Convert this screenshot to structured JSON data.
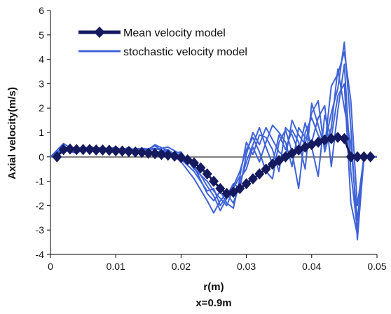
{
  "chart_data": {
    "type": "line",
    "title": "",
    "xlabel": "r(m)",
    "caption": "x=0.9m",
    "ylabel": "Axial velocity(m/s)",
    "xlim": [
      0,
      0.05
    ],
    "ylim": [
      -4,
      6
    ],
    "x_ticks": [
      "0",
      "0.01",
      "0.02",
      "0.03",
      "0.04",
      "0.05"
    ],
    "y_ticks": [
      "-4",
      "-3",
      "-2",
      "-1",
      "0",
      "1",
      "2",
      "3",
      "4",
      "5",
      "6"
    ],
    "grid": false,
    "legend_position": "top-left",
    "colors": {
      "mean": "#15195e",
      "stochastic": "#3f63d6"
    },
    "series": [
      {
        "name": "Mean velocity model",
        "marker": "diamond",
        "x": [
          0.001,
          0.002,
          0.003,
          0.004,
          0.005,
          0.006,
          0.007,
          0.008,
          0.009,
          0.01,
          0.011,
          0.012,
          0.013,
          0.014,
          0.015,
          0.016,
          0.017,
          0.018,
          0.019,
          0.02,
          0.021,
          0.022,
          0.023,
          0.024,
          0.025,
          0.026,
          0.027,
          0.028,
          0.029,
          0.03,
          0.031,
          0.032,
          0.033,
          0.034,
          0.035,
          0.036,
          0.037,
          0.038,
          0.039,
          0.04,
          0.041,
          0.042,
          0.043,
          0.044,
          0.045,
          0.046,
          0.047,
          0.048,
          0.049
        ],
        "values": [
          0.0,
          0.3,
          0.32,
          0.3,
          0.3,
          0.3,
          0.28,
          0.28,
          0.27,
          0.25,
          0.24,
          0.22,
          0.2,
          0.18,
          0.15,
          0.13,
          0.1,
          0.07,
          0.03,
          -0.03,
          -0.12,
          -0.25,
          -0.45,
          -0.7,
          -1.0,
          -1.3,
          -1.5,
          -1.45,
          -1.3,
          -1.1,
          -0.9,
          -0.7,
          -0.5,
          -0.3,
          -0.15,
          0.0,
          0.15,
          0.28,
          0.4,
          0.5,
          0.6,
          0.7,
          0.75,
          0.8,
          0.75,
          0.0,
          0.0,
          0.0,
          0.0
        ]
      },
      {
        "name": "stochastic velocity model",
        "x": [
          0.0,
          0.002,
          0.004,
          0.006,
          0.008,
          0.01,
          0.012,
          0.014,
          0.016,
          0.018,
          0.02,
          0.022,
          0.024,
          0.025,
          0.026,
          0.027,
          0.028,
          0.029,
          0.03,
          0.031,
          0.032,
          0.033,
          0.034,
          0.035,
          0.036,
          0.037,
          0.038,
          0.039,
          0.04,
          0.041,
          0.042,
          0.043,
          0.044,
          0.045,
          0.046,
          0.047,
          0.048,
          0.05
        ],
        "realizations": [
          [
            0.0,
            0.55,
            0.2,
            0.35,
            0.25,
            0.4,
            0.15,
            0.35,
            0.3,
            0.4,
            0.1,
            -0.3,
            -1.2,
            -1.6,
            -2.2,
            -1.7,
            -1.2,
            -0.6,
            0.3,
            0.8,
            0.2,
            -0.6,
            -0.9,
            0.6,
            1.1,
            0.2,
            -1.3,
            1.0,
            1.6,
            0.9,
            0.5,
            1.8,
            2.8,
            4.7,
            1.2,
            -3.4,
            0.0,
            0.0
          ],
          [
            0.0,
            0.25,
            0.4,
            0.2,
            0.35,
            0.15,
            0.4,
            0.1,
            0.5,
            0.25,
            -0.2,
            -0.9,
            -1.8,
            -2.3,
            -1.8,
            -1.5,
            -1.9,
            -1.1,
            -0.2,
            0.5,
            1.2,
            0.4,
            -0.3,
            0.9,
            0.3,
            1.1,
            0.6,
            -0.5,
            2.2,
            1.3,
            0.4,
            2.9,
            3.4,
            4.3,
            2.3,
            -2.0,
            0.0,
            0.0
          ],
          [
            0.0,
            0.3,
            0.15,
            0.45,
            0.2,
            0.3,
            0.25,
            0.2,
            0.45,
            0.1,
            0.2,
            -0.5,
            -1.0,
            -1.4,
            -1.7,
            -2.0,
            -1.3,
            -0.8,
            0.6,
            0.1,
            0.9,
            0.8,
            0.3,
            -0.6,
            1.2,
            0.9,
            0.2,
            1.4,
            0.4,
            -0.8,
            1.7,
            0.8,
            2.5,
            3.0,
            -1.9,
            -3.2,
            0.0,
            0.0
          ],
          [
            0.0,
            0.4,
            0.3,
            0.25,
            0.4,
            0.2,
            0.3,
            0.35,
            0.2,
            0.3,
            -0.1,
            -0.6,
            -1.4,
            -1.3,
            -2.0,
            -1.6,
            -1.1,
            -1.3,
            0.1,
            1.0,
            0.5,
            1.2,
            0.7,
            0.2,
            0.0,
            1.5,
            0.9,
            0.5,
            1.8,
            2.3,
            0.2,
            1.2,
            3.6,
            2.0,
            0.5,
            -2.6,
            0.0,
            0.0
          ],
          [
            0.0,
            0.2,
            0.35,
            0.3,
            0.3,
            0.35,
            0.2,
            0.3,
            0.35,
            0.2,
            0.05,
            -0.4,
            -1.5,
            -1.8,
            -1.4,
            -1.9,
            -2.1,
            -0.9,
            -0.5,
            0.4,
            -0.2,
            0.6,
            1.3,
            1.0,
            0.6,
            -0.4,
            1.2,
            0.8,
            0.6,
            1.6,
            2.1,
            -0.4,
            1.9,
            3.8,
            -0.6,
            -3.0,
            0.0,
            0.0
          ]
        ]
      }
    ]
  }
}
